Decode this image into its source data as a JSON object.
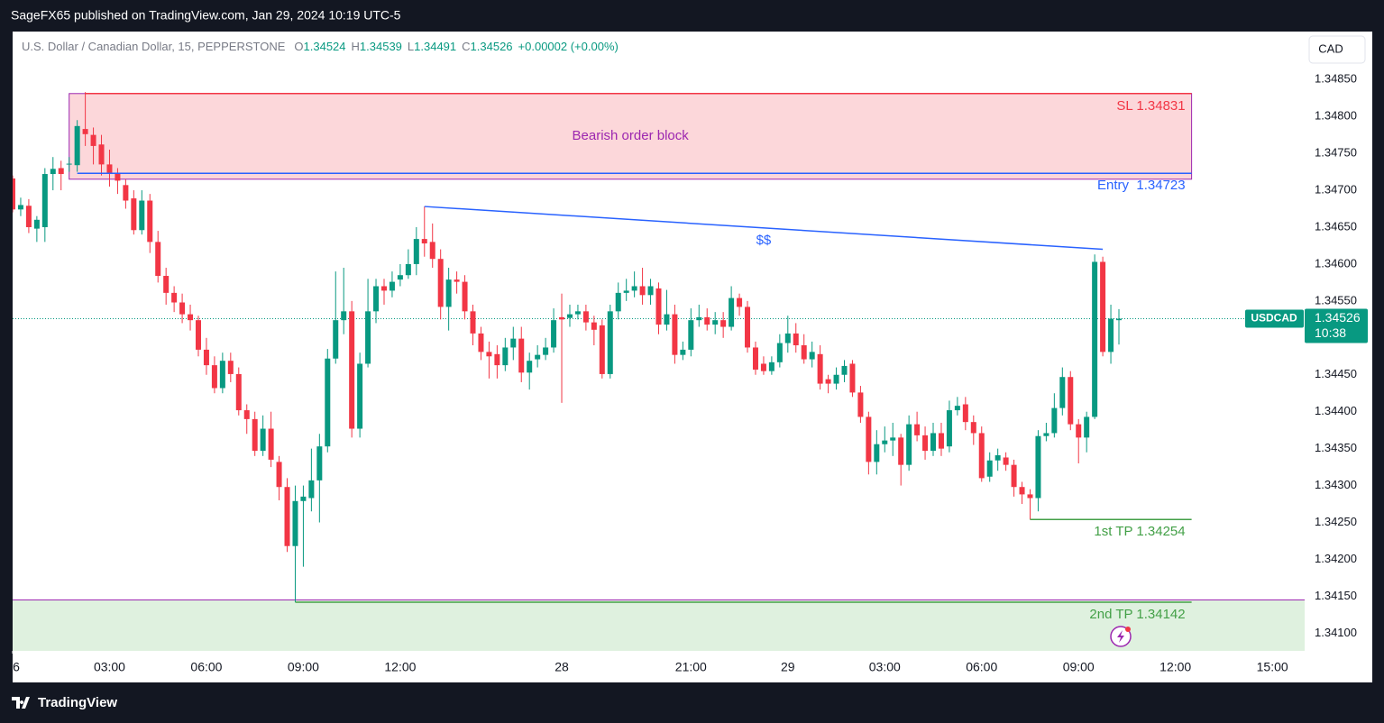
{
  "header": {
    "publisher": "SageFX65 published on TradingView.com, Jan 29, 2024 10:19 UTC-5",
    "brand": "TradingView"
  },
  "chart_data": {
    "type": "candlestick",
    "legend": {
      "symbol": "U.S. Dollar / Canadian Dollar, 15, PEPPERSTONE",
      "ohlc": [
        {
          "label": "O",
          "value": "1.34524"
        },
        {
          "label": "H",
          "value": "1.34539"
        },
        {
          "label": "L",
          "value": "1.34491"
        },
        {
          "label": "C",
          "value": "1.34526"
        }
      ],
      "change": "+0.00002 (+0.00%)"
    },
    "currency": "CAD",
    "up_color": "#089981",
    "down_color": "#f23645",
    "open": [
      1.34716,
      1.34674,
      1.34679,
      1.34648,
      1.3465,
      1.34722,
      1.3473,
      1.34735,
      1.34734,
      1.34783,
      1.34775,
      1.34762,
      1.34735,
      1.34723,
      1.34707,
      1.34689,
      1.34646,
      1.34686,
      1.3463,
      1.34584,
      1.34561,
      1.34548,
      1.34532,
      1.34524,
      1.34484,
      1.34463,
      1.34432,
      1.34469,
      1.34451,
      1.34402,
      1.3439,
      1.34347,
      1.34377,
      1.34332,
      1.34298,
      1.34218,
      1.34279,
      1.34283,
      1.34307,
      1.34353,
      1.34472,
      1.34524,
      1.34536,
      1.34377,
      1.34465,
      1.34536,
      1.3457,
      1.34564,
      1.34579,
      1.34585,
      1.346,
      1.34634,
      1.3463,
      1.34607,
      1.34542,
      1.34579,
      1.34576,
      1.34536,
      1.34506,
      1.34481,
      1.34478,
      1.34463,
      1.34487,
      1.34499,
      1.34453,
      1.34471,
      1.34477,
      1.34487,
      1.34528,
      1.34527,
      1.34532,
      1.34536,
      1.34521,
      1.34517,
      1.34451,
      1.34536,
      1.34561,
      1.34564,
      1.3457,
      1.34558,
      1.34567,
      1.34518,
      1.34532,
      1.34477,
      1.34484,
      1.34524,
      1.34528,
      1.34518,
      1.34524,
      1.34515,
      1.34554,
      1.34542,
      1.34487,
      1.34465,
      1.34455,
      1.34467,
      1.34493,
      1.34506,
      1.3449,
      1.34471,
      1.34478,
      1.34444,
      1.34438,
      1.3445,
      1.34465,
      1.34426,
      1.34393,
      1.34332,
      1.34356,
      1.34361,
      1.34365,
      1.34328,
      1.34383,
      1.34368,
      1.34347,
      1.34371,
      1.34353,
      1.34402,
      1.3441,
      1.34386,
      1.34371,
      1.34312,
      1.34334,
      1.34338,
      1.34328,
      1.34298,
      1.34288,
      1.34283,
      1.34367,
      1.34371,
      1.34405,
      1.34447,
      1.34383,
      1.34365,
      1.34393,
      1.34603,
      1.34481,
      1.34524
    ],
    "high": [
      1.3472,
      1.3469,
      1.34688,
      1.34665,
      1.3473,
      1.34745,
      1.3474,
      1.34745,
      1.34795,
      1.34833,
      1.34785,
      1.34775,
      1.34755,
      1.3473,
      1.34715,
      1.347,
      1.347,
      1.34695,
      1.34645,
      1.34595,
      1.3457,
      1.3456,
      1.34545,
      1.3453,
      1.345,
      1.34475,
      1.3448,
      1.3448,
      1.3446,
      1.3441,
      1.344,
      1.34395,
      1.344,
      1.3434,
      1.3431,
      1.343,
      1.343,
      1.3435,
      1.3437,
      1.34485,
      1.3459,
      1.34595,
      1.3455,
      1.3448,
      1.3458,
      1.3458,
      1.3458,
      1.3459,
      1.346,
      1.3462,
      1.3465,
      1.34678,
      1.34655,
      1.3462,
      1.34595,
      1.3459,
      1.34585,
      1.34545,
      1.34515,
      1.34495,
      1.3449,
      1.345,
      1.34515,
      1.34515,
      1.3448,
      1.3449,
      1.345,
      1.3454,
      1.3456,
      1.34545,
      1.34545,
      1.34545,
      1.3453,
      1.34525,
      1.34545,
      1.34575,
      1.3458,
      1.3459,
      1.34595,
      1.3458,
      1.34575,
      1.34565,
      1.34545,
      1.34495,
      1.3454,
      1.34545,
      1.3454,
      1.34535,
      1.34535,
      1.3457,
      1.3456,
      1.3455,
      1.34495,
      1.34475,
      1.34475,
      1.34505,
      1.3453,
      1.3452,
      1.34505,
      1.34495,
      1.3449,
      1.3445,
      1.3446,
      1.3447,
      1.3447,
      1.34435,
      1.344,
      1.34375,
      1.3438,
      1.34385,
      1.3437,
      1.34395,
      1.344,
      1.3438,
      1.34385,
      1.34385,
      1.34415,
      1.3442,
      1.3442,
      1.34395,
      1.3438,
      1.34345,
      1.3435,
      1.34345,
      1.34335,
      1.34305,
      1.34295,
      1.34375,
      1.34385,
      1.34425,
      1.3446,
      1.34455,
      1.3439,
      1.344,
      1.34613,
      1.3461,
      1.34545,
      1.34539
    ],
    "low": [
      1.3467,
      1.34665,
      1.34642,
      1.3463,
      1.3463,
      1.347,
      1.347,
      1.34725,
      1.34725,
      1.3476,
      1.34735,
      1.3472,
      1.34705,
      1.34695,
      1.34675,
      1.3464,
      1.3464,
      1.34615,
      1.34575,
      1.34545,
      1.34535,
      1.3452,
      1.3451,
      1.34475,
      1.3445,
      1.34425,
      1.34425,
      1.3444,
      1.34395,
      1.3437,
      1.3434,
      1.3434,
      1.34325,
      1.3428,
      1.3421,
      1.34142,
      1.3419,
      1.34265,
      1.3425,
      1.34345,
      1.34465,
      1.34505,
      1.34365,
      1.34365,
      1.3446,
      1.3452,
      1.34545,
      1.34555,
      1.3457,
      1.3458,
      1.34585,
      1.3461,
      1.34595,
      1.34525,
      1.3451,
      1.3456,
      1.34525,
      1.3449,
      1.3447,
      1.34445,
      1.34445,
      1.34455,
      1.3447,
      1.3444,
      1.3443,
      1.3446,
      1.3447,
      1.3448,
      1.34412,
      1.34515,
      1.34525,
      1.3451,
      1.3449,
      1.34445,
      1.34445,
      1.34525,
      1.3455,
      1.34555,
      1.34545,
      1.34545,
      1.34505,
      1.3451,
      1.34465,
      1.3447,
      1.34475,
      1.34515,
      1.3451,
      1.34505,
      1.345,
      1.3451,
      1.3453,
      1.3448,
      1.3445,
      1.3445,
      1.3445,
      1.3446,
      1.3448,
      1.3448,
      1.34465,
      1.3446,
      1.3443,
      1.34425,
      1.3443,
      1.3444,
      1.3442,
      1.34385,
      1.34315,
      1.34315,
      1.34345,
      1.3434,
      1.343,
      1.3432,
      1.3436,
      1.34335,
      1.3434,
      1.3434,
      1.34345,
      1.34395,
      1.34375,
      1.34355,
      1.34305,
      1.34305,
      1.3432,
      1.3432,
      1.34285,
      1.34275,
      1.34254,
      1.34265,
      1.3436,
      1.34365,
      1.34395,
      1.34375,
      1.3433,
      1.34345,
      1.3439,
      1.34475,
      1.34465,
      1.34491
    ],
    "close": [
      1.34674,
      1.3468,
      1.3465,
      1.3466,
      1.34722,
      1.34729,
      1.34722,
      1.34736,
      1.34787,
      1.34776,
      1.3476,
      1.34735,
      1.34723,
      1.34713,
      1.34686,
      1.34646,
      1.34686,
      1.3463,
      1.34584,
      1.34561,
      1.34548,
      1.34532,
      1.34524,
      1.34484,
      1.34463,
      1.34432,
      1.34469,
      1.34451,
      1.34402,
      1.3439,
      1.34347,
      1.34377,
      1.34335,
      1.34298,
      1.34218,
      1.34279,
      1.34285,
      1.34307,
      1.34353,
      1.34472,
      1.34524,
      1.34536,
      1.34377,
      1.34465,
      1.34536,
      1.3457,
      1.34564,
      1.34576,
      1.34585,
      1.346,
      1.34634,
      1.34628,
      1.34607,
      1.34542,
      1.34579,
      1.34576,
      1.34536,
      1.34506,
      1.34481,
      1.34475,
      1.34463,
      1.34487,
      1.34499,
      1.34453,
      1.34469,
      1.34477,
      1.34487,
      1.34524,
      1.34525,
      1.34532,
      1.34536,
      1.34521,
      1.34511,
      1.34451,
      1.34536,
      1.34561,
      1.34564,
      1.3457,
      1.34558,
      1.3457,
      1.34518,
      1.34532,
      1.34477,
      1.34484,
      1.34524,
      1.34528,
      1.34518,
      1.34524,
      1.34515,
      1.34554,
      1.34542,
      1.34487,
      1.34457,
      1.34455,
      1.34467,
      1.34493,
      1.34506,
      1.3449,
      1.34471,
      1.34481,
      1.34438,
      1.34438,
      1.3445,
      1.34462,
      1.34426,
      1.34393,
      1.34332,
      1.34356,
      1.34361,
      1.34365,
      1.34328,
      1.34383,
      1.34368,
      1.34347,
      1.34371,
      1.3435,
      1.34402,
      1.34408,
      1.34386,
      1.34371,
      1.3431,
      1.34334,
      1.34341,
      1.34328,
      1.34298,
      1.34288,
      1.34283,
      1.34367,
      1.34371,
      1.34405,
      1.34447,
      1.34383,
      1.34365,
      1.34393,
      1.34603,
      1.34481,
      1.34526,
      1.34526
    ],
    "xlim": [
      0,
      160
    ],
    "xticks": [
      {
        "value": 0,
        "label": "6"
      },
      {
        "value": 12,
        "label": "03:00"
      },
      {
        "value": 24,
        "label": "06:00"
      },
      {
        "value": 36,
        "label": "09:00"
      },
      {
        "value": 48,
        "label": "12:00"
      },
      {
        "value": 68,
        "label": "28"
      },
      {
        "value": 84,
        "label": "21:00"
      },
      {
        "value": 96,
        "label": "29"
      },
      {
        "value": 108,
        "label": "03:00"
      },
      {
        "value": 120,
        "label": "06:00"
      },
      {
        "value": 132,
        "label": "09:00"
      },
      {
        "value": 144,
        "label": "12:00"
      },
      {
        "value": 156,
        "label": "15:00"
      }
    ],
    "ylim": [
      1.34076,
      1.34915
    ],
    "yticks": [
      {
        "value": 1.341,
        "label": "1.34100"
      },
      {
        "value": 1.3415,
        "label": "1.34150"
      },
      {
        "value": 1.342,
        "label": "1.34200"
      },
      {
        "value": 1.3425,
        "label": "1.34250"
      },
      {
        "value": 1.343,
        "label": "1.34300"
      },
      {
        "value": 1.3435,
        "label": "1.34350"
      },
      {
        "value": 1.344,
        "label": "1.34400"
      },
      {
        "value": 1.3445,
        "label": "1.34450"
      },
      {
        "value": 1.345,
        "label": "1.34500"
      },
      {
        "value": 1.3455,
        "label": "1.34550"
      },
      {
        "value": 1.346,
        "label": "1.34600"
      },
      {
        "value": 1.3465,
        "label": "1.34650"
      },
      {
        "value": 1.347,
        "label": "1.34700"
      },
      {
        "value": 1.3475,
        "label": "1.34750"
      },
      {
        "value": 1.348,
        "label": "1.34800"
      },
      {
        "value": 1.3485,
        "label": "1.34850"
      }
    ],
    "grid": false,
    "last_price": {
      "symbol": "USDCAD",
      "value": 1.34526,
      "label": "1.34526",
      "countdown": "10:38"
    },
    "order_block": {
      "label": "Bearish order block",
      "top": 1.34831,
      "bottom": 1.34715,
      "x": [
        7,
        146
      ],
      "color": "#9c27b0"
    },
    "trend_line": {
      "label": "$$",
      "x": [
        51,
        135
      ],
      "y": [
        1.34678,
        1.3462
      ],
      "color": "#2962ff"
    },
    "support_zone": {
      "top": 1.34145,
      "bottom": 1.34076,
      "color": "#4caf50"
    },
    "levels": [
      {
        "label": "SL 1.34831",
        "value": 1.34831,
        "color": "#f23645",
        "x": [
          9,
          146
        ]
      },
      {
        "label": "Entry  1.34723",
        "value": 1.34723,
        "color": "#2962ff",
        "x": [
          8,
          146
        ]
      },
      {
        "label": "1st TP 1.34254",
        "value": 1.34254,
        "color": "#43a047",
        "x": [
          126,
          146
        ]
      },
      {
        "label": "2nd TP 1.34142",
        "value": 1.34142,
        "color": "#43a047",
        "x": [
          35,
          146
        ]
      }
    ]
  }
}
